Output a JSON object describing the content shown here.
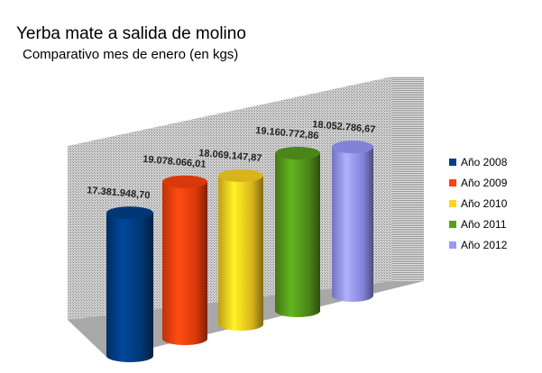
{
  "chart_data": {
    "type": "bar",
    "title": "Yerba mate a salida de molino",
    "subtitle": "Comparativo mes de enero (en  kgs)",
    "categories": [
      "Año 2008",
      "Año 2009",
      "Año 2010",
      "Año 2011",
      "Año 2012"
    ],
    "values": [
      17381948.7,
      19078066.01,
      18069147.87,
      19160772.86,
      18052786.67
    ],
    "data_labels": [
      "17.381.948,70",
      "19.078.066,01",
      "18.069.147,87",
      "19.160.772,86",
      "18.052.786,67"
    ],
    "colors": [
      "#003f87",
      "#ff420e",
      "#ffd320",
      "#579d1c",
      "#9999ff"
    ],
    "style": "3d-cylinder",
    "legend": "right",
    "grid": false
  }
}
